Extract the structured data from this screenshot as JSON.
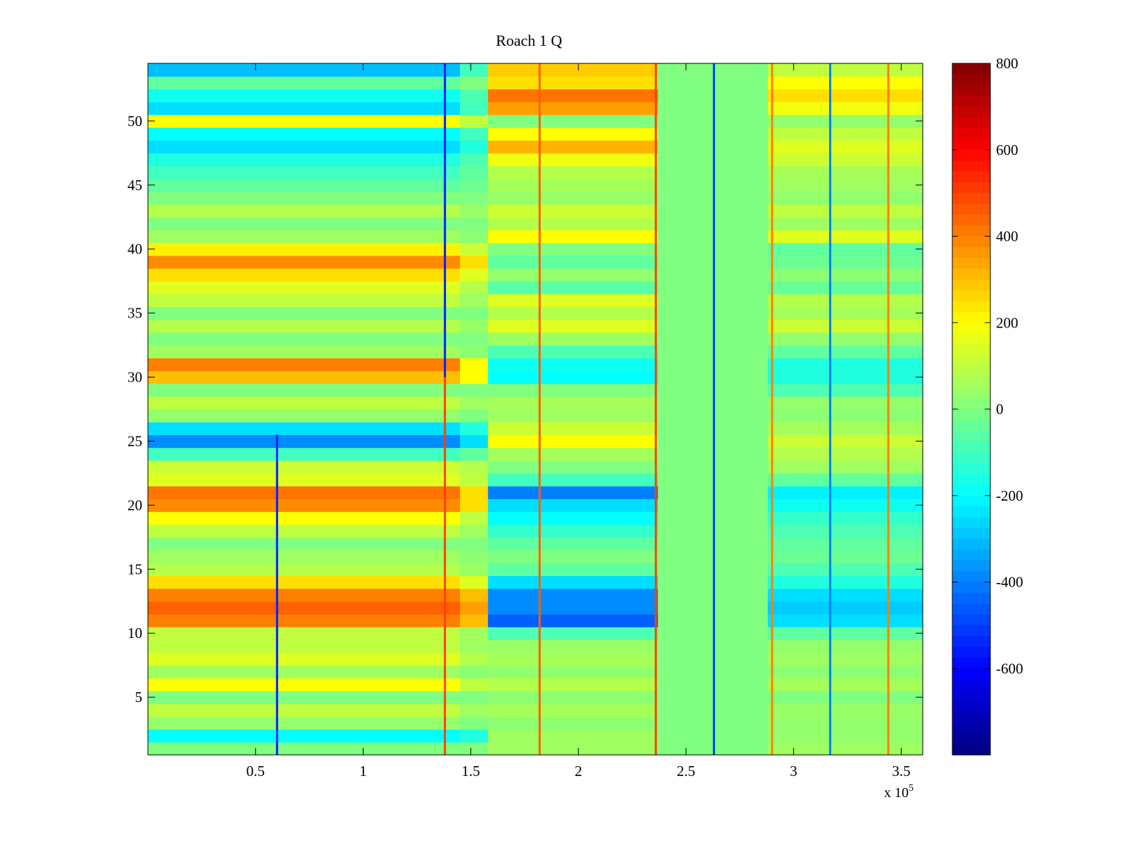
{
  "chart_data": {
    "type": "heatmap",
    "title": "Roach 1 Q",
    "xlabel": "",
    "ylabel": "",
    "x_multiplier_label": "x 10",
    "x_multiplier_exponent": "5",
    "xlim": [
      0,
      3.6
    ],
    "ylim": [
      0.5,
      54.5
    ],
    "xticks": [
      0.5,
      1,
      1.5,
      2,
      2.5,
      3,
      3.5
    ],
    "xtick_labels": [
      "0.5",
      "1",
      "1.5",
      "2",
      "2.5",
      "3",
      "3.5"
    ],
    "yticks": [
      5,
      10,
      15,
      20,
      25,
      30,
      35,
      40,
      45,
      50
    ],
    "ytick_labels": [
      "5",
      "10",
      "15",
      "20",
      "25",
      "30",
      "35",
      "40",
      "45",
      "50"
    ],
    "colorbar": {
      "colormap": "jet",
      "clim": [
        -800,
        800
      ],
      "ticks": [
        800,
        600,
        400,
        200,
        0,
        -200,
        -400,
        -600
      ],
      "tick_labels": [
        "800",
        "600",
        "400",
        "200",
        "0",
        "-200",
        "-400",
        "-600"
      ]
    },
    "x_segments": [
      {
        "x0": 0,
        "x1": 1.45
      },
      {
        "x0": 1.45,
        "x1": 1.58
      },
      {
        "x0": 1.58,
        "x1": 2.37
      },
      {
        "x0": 2.37,
        "x1": 2.88
      },
      {
        "x0": 2.88,
        "x1": 3.6
      }
    ],
    "rows": [
      {
        "y": 1,
        "values": [
          0,
          0,
          50,
          0,
          50
        ]
      },
      {
        "y": 2,
        "values": [
          -200,
          -150,
          50,
          0,
          30
        ]
      },
      {
        "y": 3,
        "values": [
          30,
          0,
          20,
          0,
          30
        ]
      },
      {
        "y": 4,
        "values": [
          100,
          50,
          60,
          0,
          40
        ]
      },
      {
        "y": 5,
        "values": [
          0,
          0,
          20,
          0,
          0
        ]
      },
      {
        "y": 6,
        "values": [
          200,
          100,
          80,
          0,
          60
        ]
      },
      {
        "y": 7,
        "values": [
          50,
          20,
          30,
          0,
          20
        ]
      },
      {
        "y": 8,
        "values": [
          150,
          80,
          60,
          0,
          50
        ]
      },
      {
        "y": 9,
        "values": [
          100,
          50,
          40,
          0,
          30
        ]
      },
      {
        "y": 10,
        "values": [
          100,
          50,
          -80,
          0,
          -50
        ]
      },
      {
        "y": 11,
        "values": [
          400,
          300,
          -450,
          0,
          -250
        ]
      },
      {
        "y": 12,
        "values": [
          450,
          350,
          -380,
          0,
          -280
        ]
      },
      {
        "y": 13,
        "values": [
          400,
          300,
          -380,
          0,
          -250
        ]
      },
      {
        "y": 14,
        "values": [
          250,
          150,
          -250,
          0,
          -150
        ]
      },
      {
        "y": 15,
        "values": [
          80,
          40,
          -50,
          0,
          -80
        ]
      },
      {
        "y": 16,
        "values": [
          50,
          20,
          0,
          0,
          -30
        ]
      },
      {
        "y": 17,
        "values": [
          0,
          0,
          -50,
          0,
          -50
        ]
      },
      {
        "y": 18,
        "values": [
          100,
          50,
          -120,
          0,
          -80
        ]
      },
      {
        "y": 19,
        "values": [
          200,
          100,
          -200,
          0,
          -120
        ]
      },
      {
        "y": 20,
        "values": [
          380,
          250,
          -250,
          0,
          -180
        ]
      },
      {
        "y": 21,
        "values": [
          420,
          250,
          -400,
          0,
          -220
        ]
      },
      {
        "y": 22,
        "values": [
          150,
          100,
          -100,
          0,
          -50
        ]
      },
      {
        "y": 23,
        "values": [
          120,
          80,
          0,
          0,
          50
        ]
      },
      {
        "y": 24,
        "values": [
          -100,
          -50,
          60,
          0,
          80
        ]
      },
      {
        "y": 25,
        "values": [
          -380,
          -250,
          200,
          0,
          120
        ]
      },
      {
        "y": 26,
        "values": [
          -250,
          -150,
          120,
          0,
          60
        ]
      },
      {
        "y": 27,
        "values": [
          30,
          0,
          50,
          0,
          20
        ]
      },
      {
        "y": 28,
        "values": [
          100,
          50,
          60,
          0,
          30
        ]
      },
      {
        "y": 29,
        "values": [
          0,
          0,
          0,
          0,
          -80
        ]
      },
      {
        "y": 30,
        "values": [
          300,
          200,
          -200,
          0,
          -150
        ]
      },
      {
        "y": 31,
        "values": [
          400,
          200,
          -180,
          0,
          -150
        ]
      },
      {
        "y": 32,
        "values": [
          50,
          20,
          -80,
          0,
          -50
        ]
      },
      {
        "y": 33,
        "values": [
          0,
          0,
          50,
          0,
          30
        ]
      },
      {
        "y": 34,
        "values": [
          80,
          40,
          150,
          0,
          120
        ]
      },
      {
        "y": 35,
        "values": [
          0,
          0,
          80,
          0,
          60
        ]
      },
      {
        "y": 36,
        "values": [
          100,
          50,
          150,
          0,
          80
        ]
      },
      {
        "y": 37,
        "values": [
          150,
          80,
          -60,
          0,
          -40
        ]
      },
      {
        "y": 38,
        "values": [
          250,
          150,
          30,
          0,
          20
        ]
      },
      {
        "y": 39,
        "values": [
          380,
          250,
          -50,
          0,
          -30
        ]
      },
      {
        "y": 40,
        "values": [
          220,
          120,
          0,
          0,
          -50
        ]
      },
      {
        "y": 41,
        "values": [
          50,
          20,
          200,
          0,
          150
        ]
      },
      {
        "y": 42,
        "values": [
          0,
          0,
          80,
          0,
          50
        ]
      },
      {
        "y": 43,
        "values": [
          80,
          40,
          120,
          0,
          100
        ]
      },
      {
        "y": 44,
        "values": [
          0,
          0,
          40,
          0,
          30
        ]
      },
      {
        "y": 45,
        "values": [
          -50,
          -30,
          60,
          0,
          50
        ]
      },
      {
        "y": 46,
        "values": [
          -100,
          -50,
          80,
          0,
          60
        ]
      },
      {
        "y": 47,
        "values": [
          -150,
          -80,
          180,
          0,
          120
        ]
      },
      {
        "y": 48,
        "values": [
          -250,
          -150,
          320,
          0,
          150
        ]
      },
      {
        "y": 49,
        "values": [
          -200,
          -100,
          200,
          0,
          100
        ]
      },
      {
        "y": 50,
        "values": [
          200,
          100,
          0,
          0,
          30
        ]
      },
      {
        "y": 51,
        "values": [
          -250,
          -100,
          350,
          0,
          180
        ]
      },
      {
        "y": 52,
        "values": [
          -180,
          -80,
          420,
          0,
          250
        ]
      },
      {
        "y": 53,
        "values": [
          -50,
          0,
          250,
          0,
          200
        ]
      },
      {
        "y": 54,
        "values": [
          -300,
          -100,
          280,
          0,
          100
        ]
      }
    ],
    "vertical_streaks": [
      {
        "x": 0.6,
        "y0": 0.5,
        "y1": 25.5,
        "value": -550
      },
      {
        "x": 1.38,
        "y0": 30,
        "y1": 54.5,
        "value": -550
      },
      {
        "x": 1.38,
        "y0": 0.5,
        "y1": 30,
        "value": 500
      },
      {
        "x": 1.82,
        "y0": 0.5,
        "y1": 54.5,
        "value": 450
      },
      {
        "x": 2.36,
        "y0": 0.5,
        "y1": 54.5,
        "value": 500
      },
      {
        "x": 2.63,
        "y0": 0.5,
        "y1": 54.5,
        "value": -500
      },
      {
        "x": 2.9,
        "y0": 0.5,
        "y1": 54.5,
        "value": 400
      },
      {
        "x": 3.17,
        "y0": 0.5,
        "y1": 54.5,
        "value": -400
      },
      {
        "x": 3.44,
        "y0": 0.5,
        "y1": 54.5,
        "value": 400
      }
    ]
  }
}
